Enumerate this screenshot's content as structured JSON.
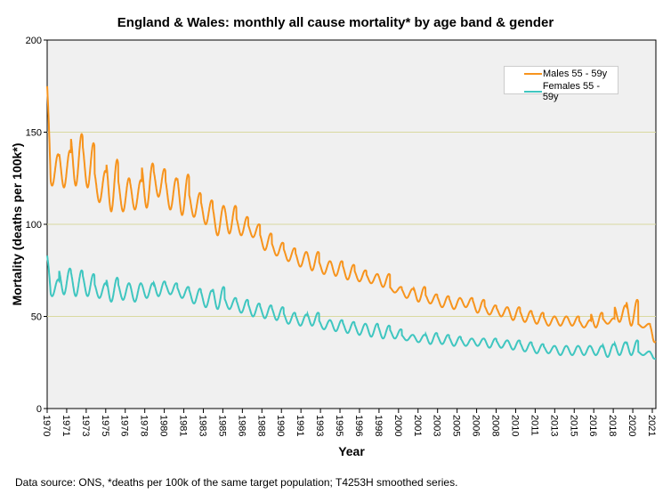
{
  "chart_data": {
    "type": "line",
    "title": "England & Wales: monthly all cause mortality* by age band & gender",
    "xlabel": "Year",
    "ylabel": "Mortality (deaths per 100k*)",
    "ylim": [
      0,
      200
    ],
    "yticks": [
      "0",
      "50",
      "100",
      "150",
      "200"
    ],
    "xlim": [
      1970,
      2021.5
    ],
    "xticks": [
      "1970",
      "1971",
      "1973",
      "1975",
      "1976",
      "1978",
      "1980",
      "1981",
      "1983",
      "1985",
      "1986",
      "1988",
      "1990",
      "1991",
      "1993",
      "1995",
      "1996",
      "1998",
      "2000",
      "2001",
      "2003",
      "2005",
      "2006",
      "2008",
      "2010",
      "2011",
      "2013",
      "2015",
      "2016",
      "2018",
      "2020",
      "2021"
    ],
    "grid": "horizontal",
    "legend_position": "top-right",
    "years_from": 1970,
    "series": [
      {
        "name": "Males 55 - 59y",
        "color": "#f7941d",
        "start": 175,
        "end": 36,
        "peaks": [
          138,
          140,
          149,
          144,
          129,
          135,
          125,
          124,
          133,
          130,
          125,
          127,
          117,
          113,
          110,
          110,
          104,
          100,
          95,
          90,
          87,
          85,
          85,
          80,
          80,
          78,
          75,
          73,
          73,
          66,
          65,
          66,
          62,
          61,
          60,
          60,
          59,
          56,
          55,
          55,
          53,
          52,
          50,
          50,
          50,
          48,
          52,
          49,
          56,
          59,
          46,
          46
        ],
        "troughs": [
          121,
          120,
          121,
          120,
          112,
          107,
          107,
          108,
          109,
          115,
          108,
          105,
          104,
          100,
          94,
          95,
          94,
          93,
          86,
          83,
          80,
          77,
          75,
          73,
          72,
          70,
          69,
          68,
          66,
          63,
          60,
          58,
          57,
          55,
          54,
          55,
          52,
          51,
          50,
          48,
          47,
          46,
          45,
          45,
          45,
          44,
          44,
          46,
          47,
          45,
          44,
          36
        ]
      },
      {
        "name": "Females 55 - 59y",
        "color": "#3fc6c0",
        "start": 83,
        "end": 27,
        "peaks": [
          70,
          76,
          75,
          73,
          68,
          71,
          68,
          68,
          68,
          69,
          68,
          66,
          65,
          64,
          66,
          60,
          59,
          57,
          56,
          55,
          52,
          51,
          52,
          48,
          48,
          47,
          46,
          46,
          45,
          43,
          40,
          40,
          41,
          40,
          39,
          38,
          38,
          38,
          37,
          37,
          36,
          35,
          34,
          34,
          34,
          34,
          34,
          35,
          36,
          37,
          31,
          31
        ],
        "troughs": [
          61,
          62,
          61,
          61,
          60,
          58,
          59,
          58,
          60,
          61,
          62,
          60,
          57,
          55,
          54,
          54,
          52,
          50,
          49,
          48,
          46,
          45,
          45,
          43,
          42,
          41,
          40,
          39,
          38,
          38,
          37,
          36,
          35,
          35,
          34,
          34,
          34,
          33,
          33,
          32,
          31,
          30,
          30,
          29,
          29,
          29,
          29,
          28,
          29,
          29,
          29,
          27
        ]
      }
    ]
  },
  "footnote": "Data source: ONS, *deaths per 100k of the same target population; T4253H smoothed series."
}
